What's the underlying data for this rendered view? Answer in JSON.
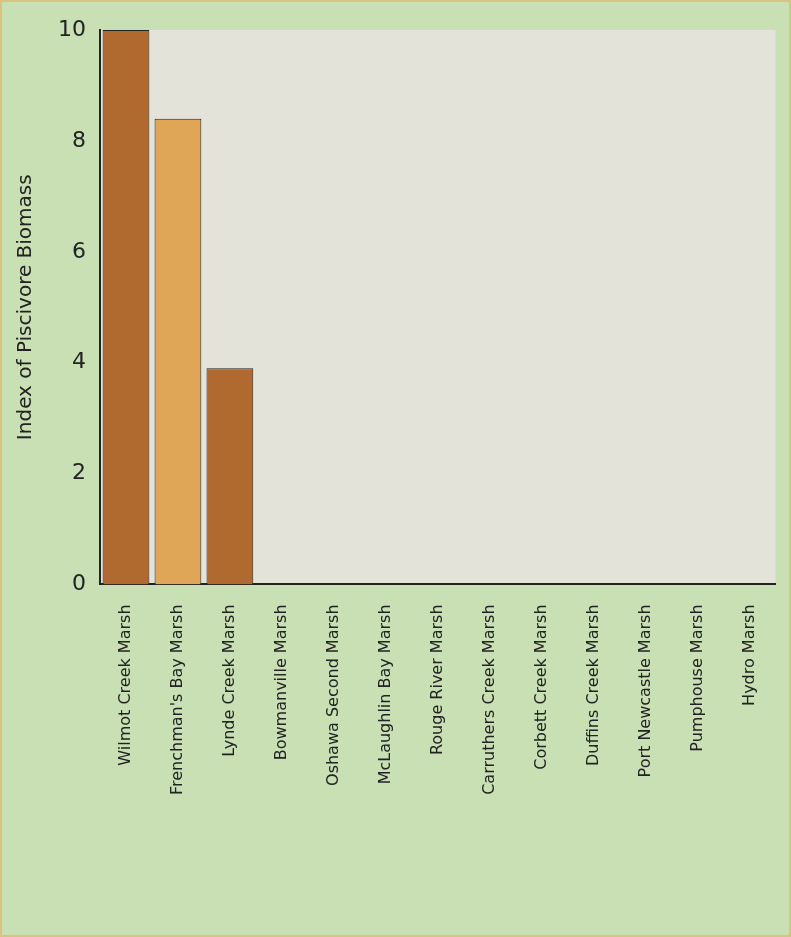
{
  "chart_data": {
    "type": "bar",
    "y_label": "Index of Piscivore Biomass",
    "categories": [
      "Wilmot Creek Marsh",
      "Frenchman's Bay Marsh",
      "Lynde Creek Marsh",
      "Bowmanville Marsh",
      "Oshawa Second Marsh",
      "McLaughlin Bay Marsh",
      "Rouge River Marsh",
      "Carruthers Creek Marsh",
      "Corbett Creek Marsh",
      "Duffins Creek Marsh",
      "Port Newcastle Marsh",
      "Pumphouse Marsh",
      "Hydro Marsh"
    ],
    "values": [
      10,
      8.4,
      3.9,
      0,
      0,
      0,
      0,
      0,
      0,
      0,
      0,
      0,
      0
    ],
    "colors": [
      "#b0692e",
      "#e0a657",
      "#b0692e",
      "#b0692e",
      "#b0692e",
      "#b0692e",
      "#b0692e",
      "#b0692e",
      "#b0692e",
      "#b0692e",
      "#b0692e",
      "#b0692e",
      "#b0692e"
    ],
    "ylim": [
      0,
      10
    ],
    "yticks": [
      0,
      2,
      4,
      6,
      8,
      10
    ],
    "grid": false
  }
}
